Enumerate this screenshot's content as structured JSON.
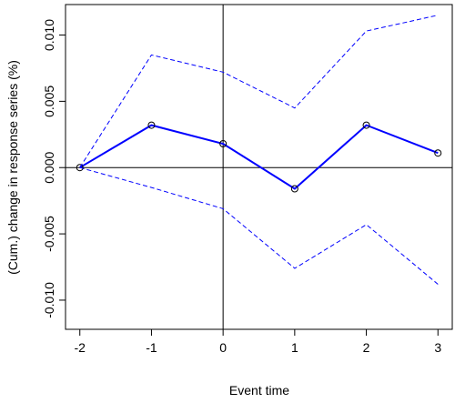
{
  "chart_data": {
    "type": "line",
    "title": "",
    "xlabel": "Event time",
    "ylabel": "(Cum.) change in response series (%)",
    "x": [
      -2,
      -1,
      0,
      1,
      2,
      3
    ],
    "x_ticks": [
      "-2",
      "-1",
      "0",
      "1",
      "2",
      "3"
    ],
    "y_ticks": [
      "-0.010",
      "-0.005",
      "0.000",
      "0.005",
      "0.010"
    ],
    "y_tick_values": [
      -0.01,
      -0.005,
      0.0,
      0.005,
      0.01
    ],
    "xlim": [
      -2.2,
      3.2
    ],
    "ylim": [
      -0.0122,
      0.0123
    ],
    "reference_lines": {
      "x": 0,
      "y": 0
    },
    "series": [
      {
        "style": "solid-markers",
        "color": "#0000ff",
        "values": [
          0.0,
          0.0032,
          0.0018,
          -0.0016,
          0.0032,
          0.0011
        ]
      },
      {
        "style": "dashed",
        "color": "#0000ff",
        "values": [
          0.0,
          0.0085,
          0.0072,
          0.0045,
          0.0103,
          0.0115
        ]
      },
      {
        "style": "dashed",
        "color": "#0000ff",
        "values": [
          0.0,
          -0.0015,
          -0.0031,
          -0.0076,
          -0.0043,
          -0.0088
        ]
      }
    ]
  }
}
